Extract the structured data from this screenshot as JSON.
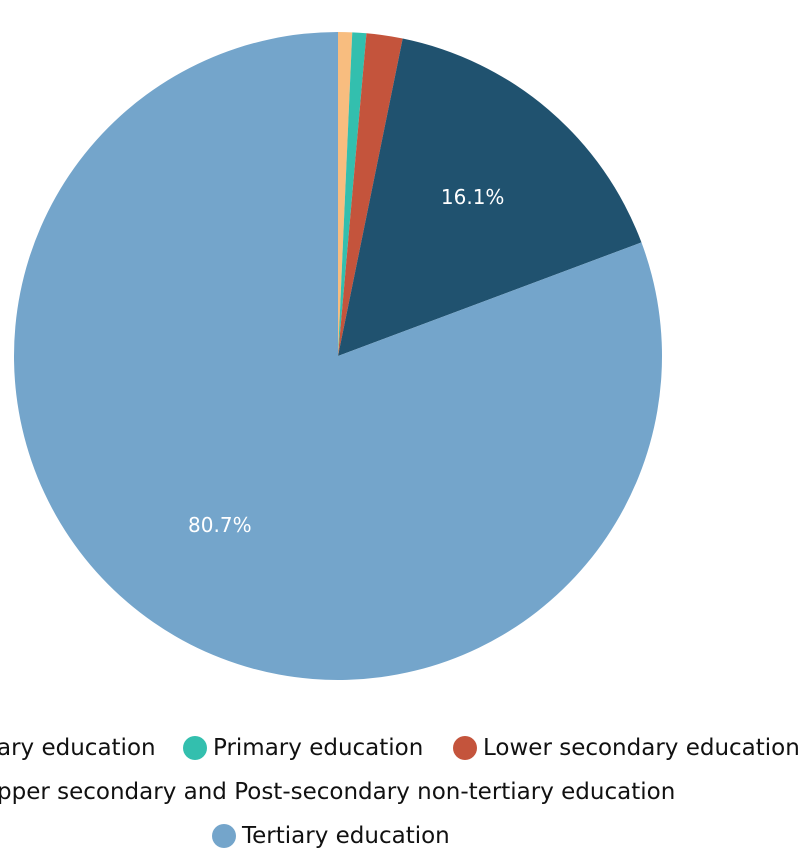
{
  "chart_data": {
    "type": "pie",
    "title": "",
    "start_angle": "12 o'clock, clockwise",
    "legend_position": "bottom",
    "slices": [
      {
        "name": "Less than primary education",
        "legend_text": "ary education",
        "value": 0.7,
        "color": "#F8BD7F"
      },
      {
        "name": "Primary education",
        "legend_text": "Primary education",
        "value": 0.7,
        "color": "#33BFAE"
      },
      {
        "name": "Lower secondary education",
        "legend_text": "Lower secondary education",
        "value": 1.8,
        "color": "#C4543C"
      },
      {
        "name": "Upper secondary and Post-secondary non-tertiary education",
        "legend_text": "pper secondary and Post-secondary non-tertiary education",
        "value": 16.1,
        "color": "#20526F"
      },
      {
        "name": "Tertiary education",
        "legend_text": "Tertiary education",
        "value": 80.7,
        "color": "#74A5CB"
      }
    ],
    "data_labels": [
      {
        "slice": 3,
        "text": "16.1%"
      },
      {
        "slice": 4,
        "text": "80.7%"
      }
    ]
  }
}
